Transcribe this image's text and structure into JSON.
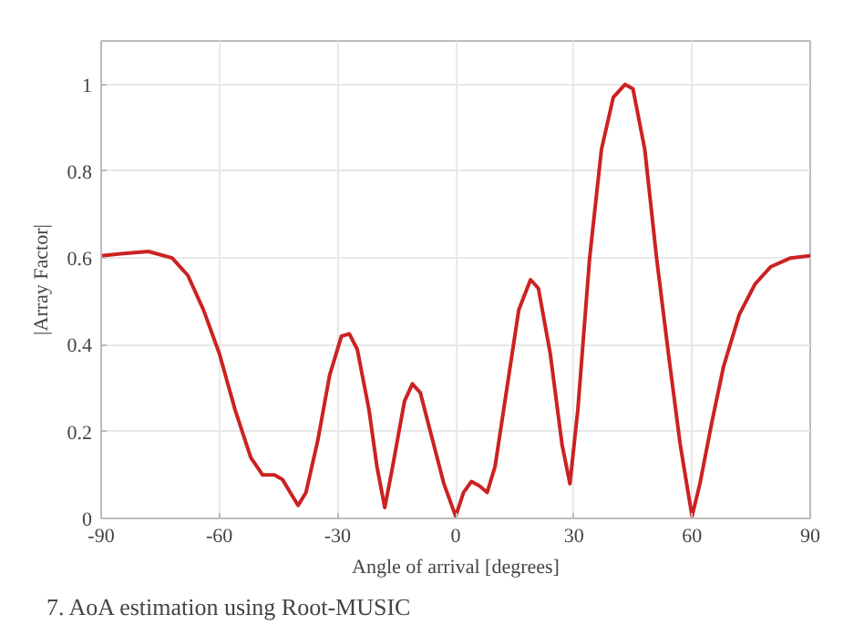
{
  "chart_data": {
    "type": "line",
    "xlabel": "Angle of arrival [degrees]",
    "ylabel": "|Array Factor|",
    "annotations": [
      "7.   AoA estimation using Root-MUSIC"
    ],
    "x": [
      -90,
      -85,
      -78,
      -72,
      -68,
      -64,
      -60,
      -56,
      -52,
      -49,
      -46,
      -44,
      -42,
      -40,
      -38,
      -35,
      -32,
      -29,
      -27,
      -25,
      -22,
      -20,
      -18,
      -16,
      -13,
      -11,
      -9,
      -7,
      -5,
      -3,
      0,
      2,
      4,
      6,
      8,
      10,
      13,
      16,
      19,
      21,
      24,
      27,
      29,
      31,
      34,
      37,
      40,
      43,
      45,
      48,
      51,
      54,
      57,
      60,
      62,
      65,
      68,
      72,
      76,
      80,
      85,
      90
    ],
    "series": [
      {
        "color": "#cc2222",
        "values": [
          0.605,
          0.61,
          0.615,
          0.6,
          0.56,
          0.48,
          0.38,
          0.25,
          0.14,
          0.1,
          0.1,
          0.09,
          0.06,
          0.03,
          0.06,
          0.18,
          0.33,
          0.42,
          0.425,
          0.39,
          0.25,
          0.12,
          0.025,
          0.12,
          0.27,
          0.31,
          0.29,
          0.22,
          0.15,
          0.08,
          0.005,
          0.06,
          0.085,
          0.075,
          0.06,
          0.12,
          0.3,
          0.48,
          0.55,
          0.53,
          0.38,
          0.17,
          0.08,
          0.25,
          0.6,
          0.85,
          0.97,
          1.0,
          0.99,
          0.85,
          0.6,
          0.38,
          0.17,
          0.005,
          0.08,
          0.22,
          0.35,
          0.47,
          0.54,
          0.58,
          0.6,
          0.605
        ]
      }
    ],
    "xlim": [
      -90,
      90
    ],
    "ylim": [
      0,
      1.1
    ],
    "xticks": [
      -90,
      -60,
      -30,
      0,
      30,
      60,
      90
    ],
    "yticks": [
      0,
      0.2,
      0.4,
      0.6,
      0.8,
      1
    ],
    "grid": true,
    "marker": "none",
    "line_style": "solid"
  }
}
